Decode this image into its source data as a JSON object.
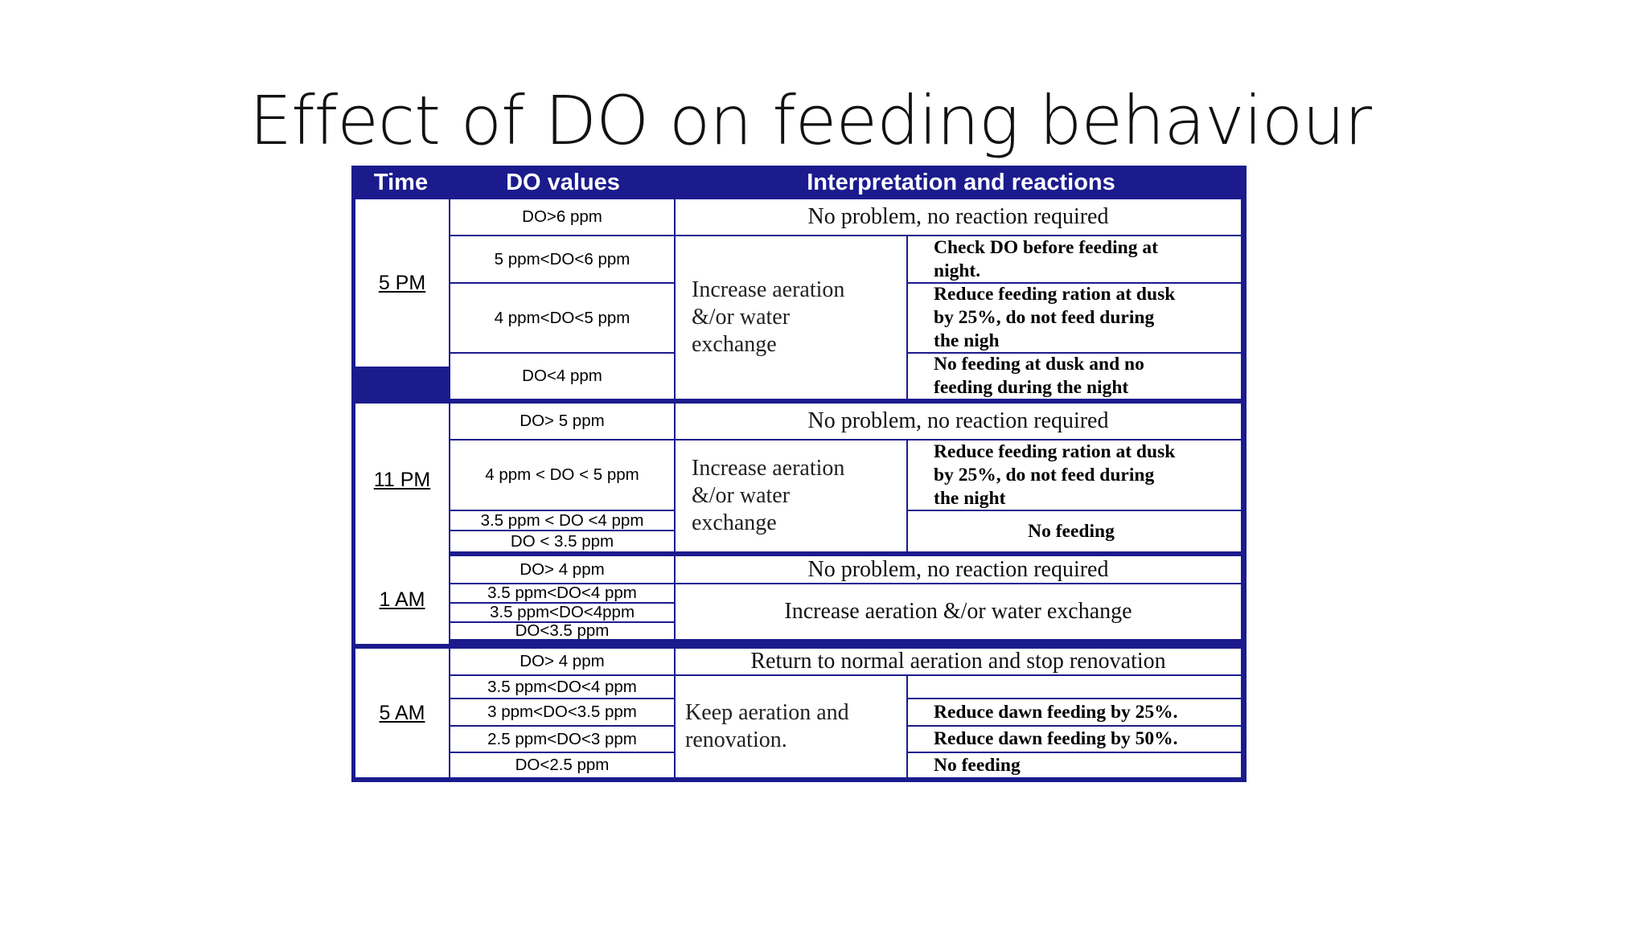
{
  "slide": {
    "title": "Effect of DO on feeding behaviour"
  },
  "table": {
    "headers": {
      "time": "Time",
      "do_values": "DO values",
      "interpretation": "Interpretation and reactions"
    },
    "groups": [
      {
        "time": "5 PM",
        "do_values": [
          "DO>6 ppm",
          "5 ppm<DO<6 ppm",
          "4 ppm<DO<5 ppm",
          "DO<4 ppm"
        ],
        "no_problem": "No problem, no reaction required",
        "general_reaction": [
          "Increase aeration",
          "&/or water",
          "exchange"
        ],
        "actions": [
          [
            "Check DO before feeding at",
            "night."
          ],
          [
            "Reduce feeding ration at dusk",
            "by 25%, do not feed during",
            "the nigh"
          ],
          [
            "No feeding at dusk and no",
            "feeding during the night"
          ]
        ]
      },
      {
        "time": "11 PM",
        "do_values": [
          "DO> 5 ppm",
          "4 ppm < DO < 5 ppm",
          "3.5 ppm < DO <4 ppm",
          "DO < 3.5 ppm"
        ],
        "no_problem": "No problem, no reaction required",
        "general_reaction": [
          "Increase aeration",
          "&/or water",
          "exchange"
        ],
        "actions": [
          [
            "Reduce feeding ration at dusk",
            "by 25%, do not feed during",
            "the night"
          ],
          [
            "No feeding"
          ]
        ]
      },
      {
        "time": "1 AM",
        "do_values": [
          "DO> 4 ppm",
          "3.5 ppm<DO<4 ppm",
          "3.5 ppm<DO<4ppm",
          "DO<3.5 ppm"
        ],
        "no_problem": "No problem, no reaction required",
        "general_reaction": "Increase aeration &/or water exchange"
      },
      {
        "time": "5 AM",
        "do_values": [
          "DO> 4 ppm",
          "3.5 ppm<DO<4 ppm",
          "3 ppm<DO<3.5 ppm",
          "2.5 ppm<DO<3 ppm",
          "DO<2.5 ppm"
        ],
        "no_problem": "Return to normal aeration and stop renovation",
        "general_reaction": [
          "Keep aeration and",
          "renovation."
        ],
        "actions": [
          [
            ""
          ],
          [
            "Reduce dawn feeding by 25%."
          ],
          [
            "Reduce dawn feeding by 50%."
          ],
          [
            "No feeding"
          ]
        ]
      }
    ]
  }
}
